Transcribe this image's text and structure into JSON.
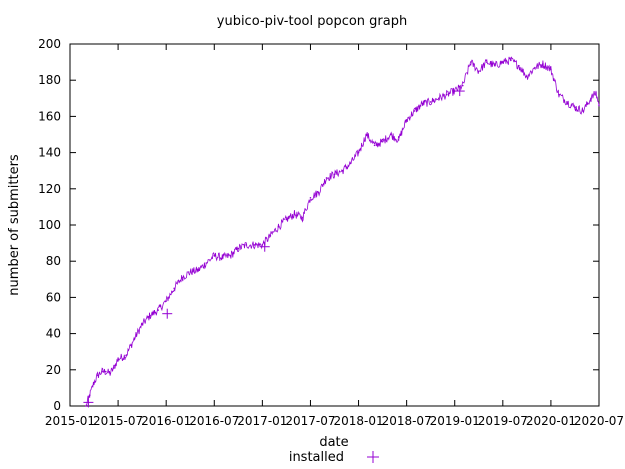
{
  "chart_data": {
    "type": "line",
    "title": "yubico-piv-tool popcon graph",
    "xlabel": "date",
    "ylabel": "number of submitters",
    "x_tick_labels": [
      "2015-01",
      "2015-07",
      "2016-01",
      "2016-07",
      "2017-01",
      "2017-07",
      "2018-01",
      "2018-07",
      "2019-01",
      "2019-07",
      "2020-01",
      "2020-07"
    ],
    "xlim": [
      "2015-01",
      "2020-07"
    ],
    "y_ticks": [
      0,
      20,
      40,
      60,
      80,
      100,
      120,
      140,
      160,
      180,
      200
    ],
    "ylim": [
      0,
      200
    ],
    "legend_position": "bottom-center",
    "grid": false,
    "series": [
      {
        "name": "installed",
        "color": "#9400d3",
        "marker": "plus",
        "x": [
          "2015-03-01",
          "2015-03-15",
          "2015-04-01",
          "2015-04-15",
          "2015-05-01",
          "2015-05-15",
          "2015-06-01",
          "2015-06-15",
          "2015-07-01",
          "2015-08-01",
          "2015-09-01",
          "2015-10-01",
          "2015-11-01",
          "2015-12-01",
          "2016-01-01",
          "2016-02-01",
          "2016-03-01",
          "2016-04-01",
          "2016-05-01",
          "2016-06-01",
          "2016-07-01",
          "2016-08-01",
          "2016-09-01",
          "2016-10-01",
          "2016-11-01",
          "2016-12-01",
          "2017-01-01",
          "2017-02-01",
          "2017-03-01",
          "2017-04-01",
          "2017-05-01",
          "2017-06-01",
          "2017-07-01",
          "2017-08-01",
          "2017-09-01",
          "2017-10-01",
          "2017-11-01",
          "2017-12-01",
          "2018-01-01",
          "2018-02-01",
          "2018-03-01",
          "2018-04-01",
          "2018-05-01",
          "2018-06-01",
          "2018-07-01",
          "2018-08-01",
          "2018-09-01",
          "2018-10-01",
          "2018-11-01",
          "2018-12-01",
          "2019-01-01",
          "2019-02-01",
          "2019-03-01",
          "2019-04-01",
          "2019-05-01",
          "2019-06-01",
          "2019-07-01",
          "2019-08-01",
          "2019-09-01",
          "2019-10-01",
          "2019-11-01",
          "2019-12-01",
          "2020-01-01",
          "2020-02-01",
          "2020-03-01",
          "2020-04-01",
          "2020-05-01",
          "2020-06-01",
          "2020-06-20",
          "2020-07-01"
        ],
        "y": [
          0,
          6,
          13,
          17,
          19,
          19,
          18,
          21,
          26,
          28,
          37,
          45,
          50,
          53,
          58,
          65,
          71,
          74,
          75,
          79,
          83,
          82,
          83,
          87,
          89,
          89,
          89,
          94,
          99,
          103,
          106,
          104,
          115,
          118,
          126,
          128,
          130,
          134,
          140,
          150,
          144,
          146,
          150,
          147,
          158,
          163,
          167,
          168,
          170,
          172,
          174,
          177,
          190,
          185,
          190,
          188,
          190,
          191,
          188,
          182,
          187,
          189,
          186,
          172,
          168,
          165,
          163,
          170,
          173,
          166
        ]
      }
    ],
    "markers_at": [
      {
        "x": "2015-03-10",
        "y": 2
      },
      {
        "x": "2016-01-05",
        "y": 51
      },
      {
        "x": "2017-01-10",
        "y": 88
      },
      {
        "x": "2019-01-20",
        "y": 174
      }
    ]
  }
}
